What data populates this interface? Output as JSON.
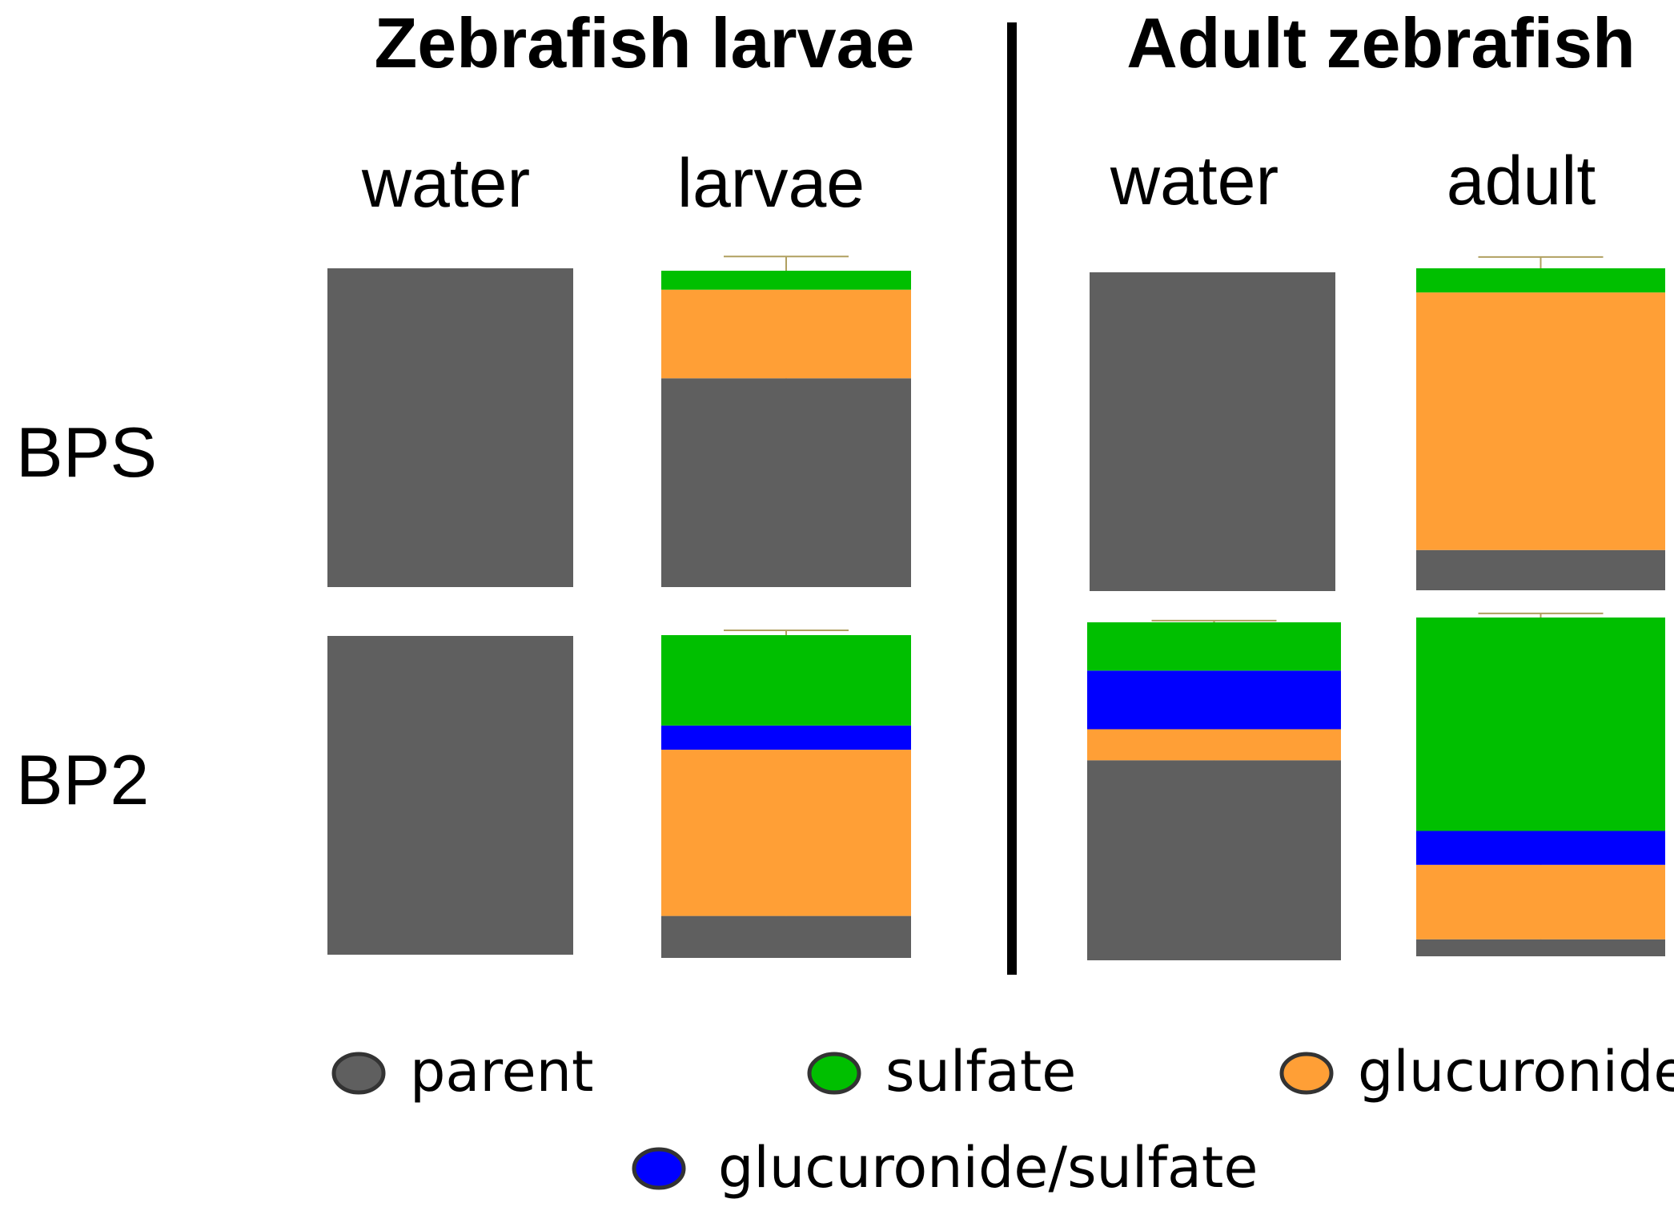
{
  "chart_data": {
    "type": "bar",
    "stacked": true,
    "normalized": true,
    "panels": [
      {
        "title": "Zebrafish larvae",
        "columns": [
          "water",
          "larvae"
        ]
      },
      {
        "title": "Adult zebrafish",
        "columns": [
          "water",
          "adult"
        ]
      }
    ],
    "rows": [
      "BPS",
      "BP2"
    ],
    "series": [
      {
        "name": "parent",
        "color": "#5f5f5f"
      },
      {
        "name": "glucuronide",
        "color": "#ff9f36"
      },
      {
        "name": "glucuronide/sulfate",
        "color": "#0000ff"
      },
      {
        "name": "sulfate",
        "color": "#00bf00"
      }
    ],
    "bars": [
      {
        "row": "BPS",
        "column": "water",
        "panel": 0,
        "values": {
          "parent": 100,
          "glucuronide": 0,
          "glucuronide/sulfate": 0,
          "sulfate": 0
        },
        "errors": {}
      },
      {
        "row": "BPS",
        "column": "larvae",
        "panel": 0,
        "values": {
          "parent": 66,
          "glucuronide": 28,
          "glucuronide/sulfate": 0,
          "sulfate": 6
        },
        "errors": {
          "parent": 4.5,
          "sulfate": 4.5
        }
      },
      {
        "row": "BPS",
        "column": "water",
        "panel": 1,
        "values": {
          "parent": 100,
          "glucuronide": 0,
          "glucuronide/sulfate": 0,
          "sulfate": 0
        },
        "errors": {}
      },
      {
        "row": "BPS",
        "column": "adult",
        "panel": 1,
        "values": {
          "parent": 12.5,
          "glucuronide": 80,
          "glucuronide/sulfate": 0,
          "sulfate": 7.5
        },
        "errors": {
          "parent": 4.5,
          "sulfate": 3.5
        }
      },
      {
        "row": "BP2",
        "column": "water",
        "panel": 0,
        "values": {
          "parent": 100,
          "glucuronide": 0,
          "glucuronide/sulfate": 0,
          "sulfate": 0
        },
        "errors": {}
      },
      {
        "row": "BP2",
        "column": "larvae",
        "panel": 0,
        "values": {
          "parent": 13,
          "glucuronide": 51.5,
          "glucuronide/sulfate": 7.5,
          "sulfate": 28
        },
        "errors": {
          "parent": 3,
          "glucuronide": 1.5,
          "sulfate": 1.5
        }
      },
      {
        "row": "BP2",
        "column": "water",
        "panel": 1,
        "values": {
          "parent": 58,
          "glucuronide": 9,
          "glucuronide/sulfate": 17,
          "sulfate": 14
        },
        "errors": {
          "parent": 3,
          "glucuronide": 1.5,
          "glucuronide/sulfate": 0.7,
          "sulfate": 0.5
        }
      },
      {
        "row": "BP2",
        "column": "adult",
        "panel": 1,
        "values": {
          "parent": 5,
          "glucuronide": 22,
          "glucuronide/sulfate": 10,
          "sulfate": 63
        },
        "errors": {
          "parent": 0.6,
          "glucuronide": 3.3,
          "glucuronide/sulfate": 1.2,
          "sulfate": 1.2
        }
      }
    ],
    "legend": [
      "parent",
      "sulfate",
      "glucuronide",
      "glucuronide/sulfate"
    ],
    "legend_position": "bottom"
  },
  "colors": {
    "errorbar": "#b0a060",
    "divider": "#000000"
  }
}
